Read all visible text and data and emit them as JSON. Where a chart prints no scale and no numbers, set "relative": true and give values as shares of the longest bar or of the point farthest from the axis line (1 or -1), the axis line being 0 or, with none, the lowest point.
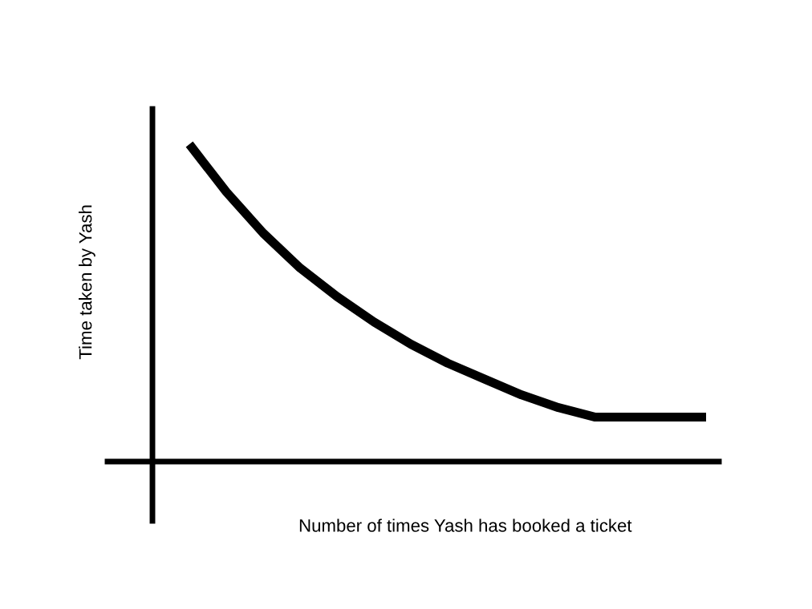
{
  "chart_data": {
    "type": "line",
    "relative": true,
    "xlabel": "Number of times Yash has booked a ticket",
    "ylabel": "Time taken by Yash",
    "categories": [
      null,
      null,
      null,
      null,
      null,
      null,
      null,
      null,
      null,
      null,
      null,
      null,
      null,
      null,
      null
    ],
    "series": [
      {
        "color": "#000000",
        "values": [
          1,
          0.85,
          0.72,
          0.61,
          0.52,
          0.44,
          0.37,
          0.31,
          0.26,
          0.21,
          0.17,
          0.14,
          0.14,
          0.14,
          0.14
        ]
      }
    ],
    "legend": false,
    "marker": "none",
    "line_style": "solid"
  }
}
